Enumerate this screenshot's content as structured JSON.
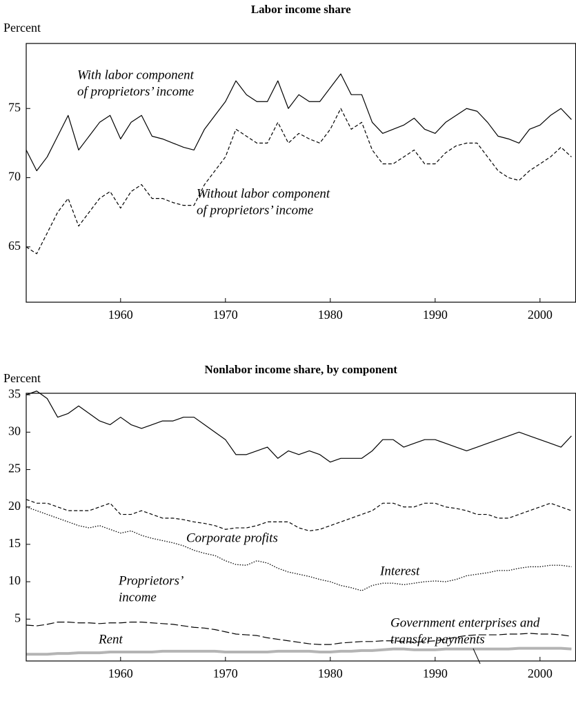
{
  "chart_data": [
    {
      "type": "line",
      "title": "Labor income share",
      "y_label": "Percent",
      "x": [
        1951,
        1952,
        1953,
        1954,
        1955,
        1956,
        1957,
        1958,
        1959,
        1960,
        1961,
        1962,
        1963,
        1964,
        1965,
        1966,
        1967,
        1968,
        1969,
        1970,
        1971,
        1972,
        1973,
        1974,
        1975,
        1976,
        1977,
        1978,
        1979,
        1980,
        1981,
        1982,
        1983,
        1984,
        1985,
        1986,
        1987,
        1988,
        1989,
        1990,
        1991,
        1992,
        1993,
        1994,
        1995,
        1996,
        1997,
        1998,
        1999,
        2000,
        2001,
        2002,
        2003
      ],
      "series": [
        {
          "name": [
            "With labor component",
            "of proprietors’ income"
          ],
          "color": "#000000",
          "dash": "solid",
          "values": [
            72,
            70.5,
            71.5,
            73,
            74.5,
            72,
            73,
            74,
            74.5,
            72.8,
            74,
            74.5,
            73,
            72.8,
            72.5,
            72.2,
            72,
            73.5,
            74.5,
            75.5,
            77,
            76,
            75.5,
            75.5,
            77,
            75,
            76,
            75.5,
            75.5,
            76.5,
            77.5,
            76,
            76,
            74,
            73.2,
            73.5,
            73.8,
            74.3,
            73.5,
            73.2,
            74,
            74.5,
            75,
            74.8,
            74,
            73,
            72.8,
            72.5,
            73.5,
            73.8,
            74.5,
            75,
            74.2
          ]
        },
        {
          "name": [
            "Without labor component",
            "of proprietors’ income"
          ],
          "color": "#000000",
          "dash": "dashed",
          "values": [
            65,
            64.5,
            66,
            67.5,
            68.5,
            66.5,
            67.5,
            68.5,
            69,
            67.8,
            69,
            69.5,
            68.5,
            68.5,
            68.2,
            68,
            68,
            69.5,
            70.5,
            71.5,
            73.5,
            73,
            72.5,
            72.5,
            74,
            72.5,
            73.2,
            72.8,
            72.5,
            73.5,
            75,
            73.5,
            74,
            72,
            71,
            71,
            71.5,
            72,
            71,
            71,
            71.8,
            72.3,
            72.5,
            72.5,
            71.5,
            70.5,
            70,
            69.8,
            70.5,
            71,
            71.5,
            72.2,
            71.5
          ]
        }
      ],
      "xlim": [
        1951,
        2003.4
      ],
      "ylim": [
        61,
        79.7
      ],
      "xticks": [
        1960,
        1970,
        1980,
        1990,
        2000
      ],
      "yticks": [
        65,
        70,
        75
      ]
    },
    {
      "type": "line",
      "title": "Nonlabor income share, by component",
      "y_label": "Percent",
      "x": [
        1951,
        1952,
        1953,
        1954,
        1955,
        1956,
        1957,
        1958,
        1959,
        1960,
        1961,
        1962,
        1963,
        1964,
        1965,
        1966,
        1967,
        1968,
        1969,
        1970,
        1971,
        1972,
        1973,
        1974,
        1975,
        1976,
        1977,
        1978,
        1979,
        1980,
        1981,
        1982,
        1983,
        1984,
        1985,
        1986,
        1987,
        1988,
        1989,
        1990,
        1991,
        1992,
        1993,
        1994,
        1995,
        1996,
        1997,
        1998,
        1999,
        2000,
        2001,
        2002,
        2003
      ],
      "series": [
        {
          "name": [
            "Corporate profits"
          ],
          "color": "#000000",
          "dash": "solid",
          "values": [
            35,
            35.5,
            34.5,
            32,
            32.5,
            33.5,
            32.5,
            31.5,
            31,
            32,
            31,
            30.5,
            31,
            31.5,
            31.5,
            32,
            32,
            31,
            30,
            29,
            27,
            27,
            27.5,
            28,
            26.5,
            27.5,
            27,
            27.5,
            27,
            26,
            26.5,
            26.5,
            26.5,
            27.5,
            29,
            29,
            28,
            28.5,
            29,
            29,
            28.5,
            28,
            27.5,
            28,
            28.5,
            29,
            29.5,
            30,
            29.5,
            29,
            28.5,
            28,
            29.5
          ]
        },
        {
          "name": [
            "Interest"
          ],
          "color": "#000000",
          "dash": "dashed",
          "values": [
            21,
            20.5,
            20.5,
            20,
            19.5,
            19.5,
            19.5,
            20,
            20.5,
            19,
            19,
            19.5,
            19,
            18.5,
            18.5,
            18.3,
            18,
            17.8,
            17.5,
            17,
            17.2,
            17.2,
            17.5,
            18,
            18,
            18,
            17.2,
            16.8,
            17,
            17.5,
            18,
            18.5,
            19,
            19.5,
            20.5,
            20.5,
            20,
            20,
            20.5,
            20.5,
            20,
            19.8,
            19.5,
            19,
            19,
            18.5,
            18.5,
            19,
            19.5,
            20,
            20.5,
            20,
            19.5
          ]
        },
        {
          "name": [
            "Proprietors’",
            "income"
          ],
          "color": "#000000",
          "dash": "dotted",
          "values": [
            20,
            19.5,
            19,
            18.5,
            18,
            17.5,
            17.2,
            17.5,
            17,
            16.5,
            16.8,
            16.2,
            15.8,
            15.5,
            15.2,
            14.8,
            14.2,
            13.8,
            13.5,
            12.8,
            12.3,
            12.2,
            12.8,
            12.5,
            11.8,
            11.3,
            11,
            10.7,
            10.3,
            10,
            9.5,
            9.2,
            8.8,
            9.5,
            9.8,
            9.8,
            9.6,
            9.8,
            10,
            10.1,
            10,
            10.3,
            10.8,
            11,
            11.2,
            11.5,
            11.5,
            11.8,
            12,
            12,
            12.2,
            12.2,
            12
          ]
        },
        {
          "name": [
            "Rent"
          ],
          "color": "#000000",
          "dash": "long-dashed",
          "values": [
            4.2,
            4.1,
            4.3,
            4.6,
            4.6,
            4.5,
            4.5,
            4.4,
            4.5,
            4.5,
            4.6,
            4.6,
            4.5,
            4.4,
            4.3,
            4.1,
            3.9,
            3.8,
            3.6,
            3.3,
            3.0,
            2.9,
            2.8,
            2.5,
            2.3,
            2.1,
            1.9,
            1.7,
            1.6,
            1.6,
            1.8,
            1.9,
            2.0,
            2.0,
            2.1,
            2.1,
            2.0,
            1.9,
            2.0,
            2.1,
            2.3,
            2.6,
            2.8,
            2.9,
            2.9,
            2.9,
            3.0,
            3.0,
            3.1,
            3.0,
            3.0,
            2.9,
            2.7
          ]
        },
        {
          "name": [
            "Government enterprises and",
            "transfer payments"
          ],
          "color": "#b4b4b4",
          "dash": "thick",
          "values": [
            0.3,
            0.3,
            0.3,
            0.4,
            0.4,
            0.5,
            0.5,
            0.5,
            0.6,
            0.6,
            0.6,
            0.6,
            0.6,
            0.7,
            0.7,
            0.7,
            0.7,
            0.7,
            0.7,
            0.6,
            0.6,
            0.6,
            0.6,
            0.6,
            0.7,
            0.7,
            0.7,
            0.7,
            0.6,
            0.6,
            0.7,
            0.7,
            0.8,
            0.8,
            0.9,
            1.0,
            1.0,
            0.9,
            0.9,
            0.9,
            1.0,
            1.0,
            1.0,
            1.0,
            1.0,
            1.0,
            1.0,
            1.1,
            1.1,
            1.1,
            1.1,
            1.1,
            1.0
          ]
        }
      ],
      "xlim": [
        1951,
        2003.4
      ],
      "ylim": [
        -0.6,
        35.2
      ],
      "xticks": [
        1960,
        1970,
        1980,
        1990,
        2000
      ],
      "yticks": [
        5,
        10,
        15,
        20,
        25,
        30,
        35
      ]
    }
  ]
}
